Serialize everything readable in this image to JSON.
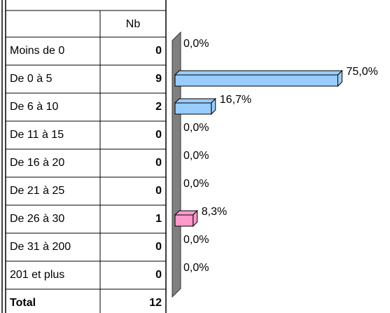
{
  "table": {
    "header": "Nb",
    "rows": [
      [
        "Moins de 0",
        "0"
      ],
      [
        "De 0 à 5",
        "9"
      ],
      [
        "De 6 à 10",
        "2"
      ],
      [
        "De 11 à 15",
        "0"
      ],
      [
        "De 16 à 20",
        "0"
      ],
      [
        "De 21 à 25",
        "0"
      ],
      [
        "De 26 à 30",
        "1"
      ],
      [
        "De 31 à 200",
        "0"
      ],
      [
        "201 et plus",
        "0"
      ]
    ],
    "total": [
      "Total",
      "12"
    ]
  },
  "chart_data": {
    "type": "bar3d",
    "values": [
      0,
      75,
      16.7,
      0,
      0,
      0,
      8.3,
      0,
      0
    ],
    "value_labels": [
      "0,0%",
      "75,0%",
      "16,7%",
      "0,0%",
      "0,0%",
      "0,0%",
      "8,3%",
      "0,0%",
      "0,0%"
    ],
    "colors": [
      "#99ccff",
      "#99ccff",
      "#99ccff",
      "#99ccff",
      "#99ccff",
      "#99ccff",
      "#ff99cc",
      "#99ccff",
      "#99ccff"
    ]
  }
}
